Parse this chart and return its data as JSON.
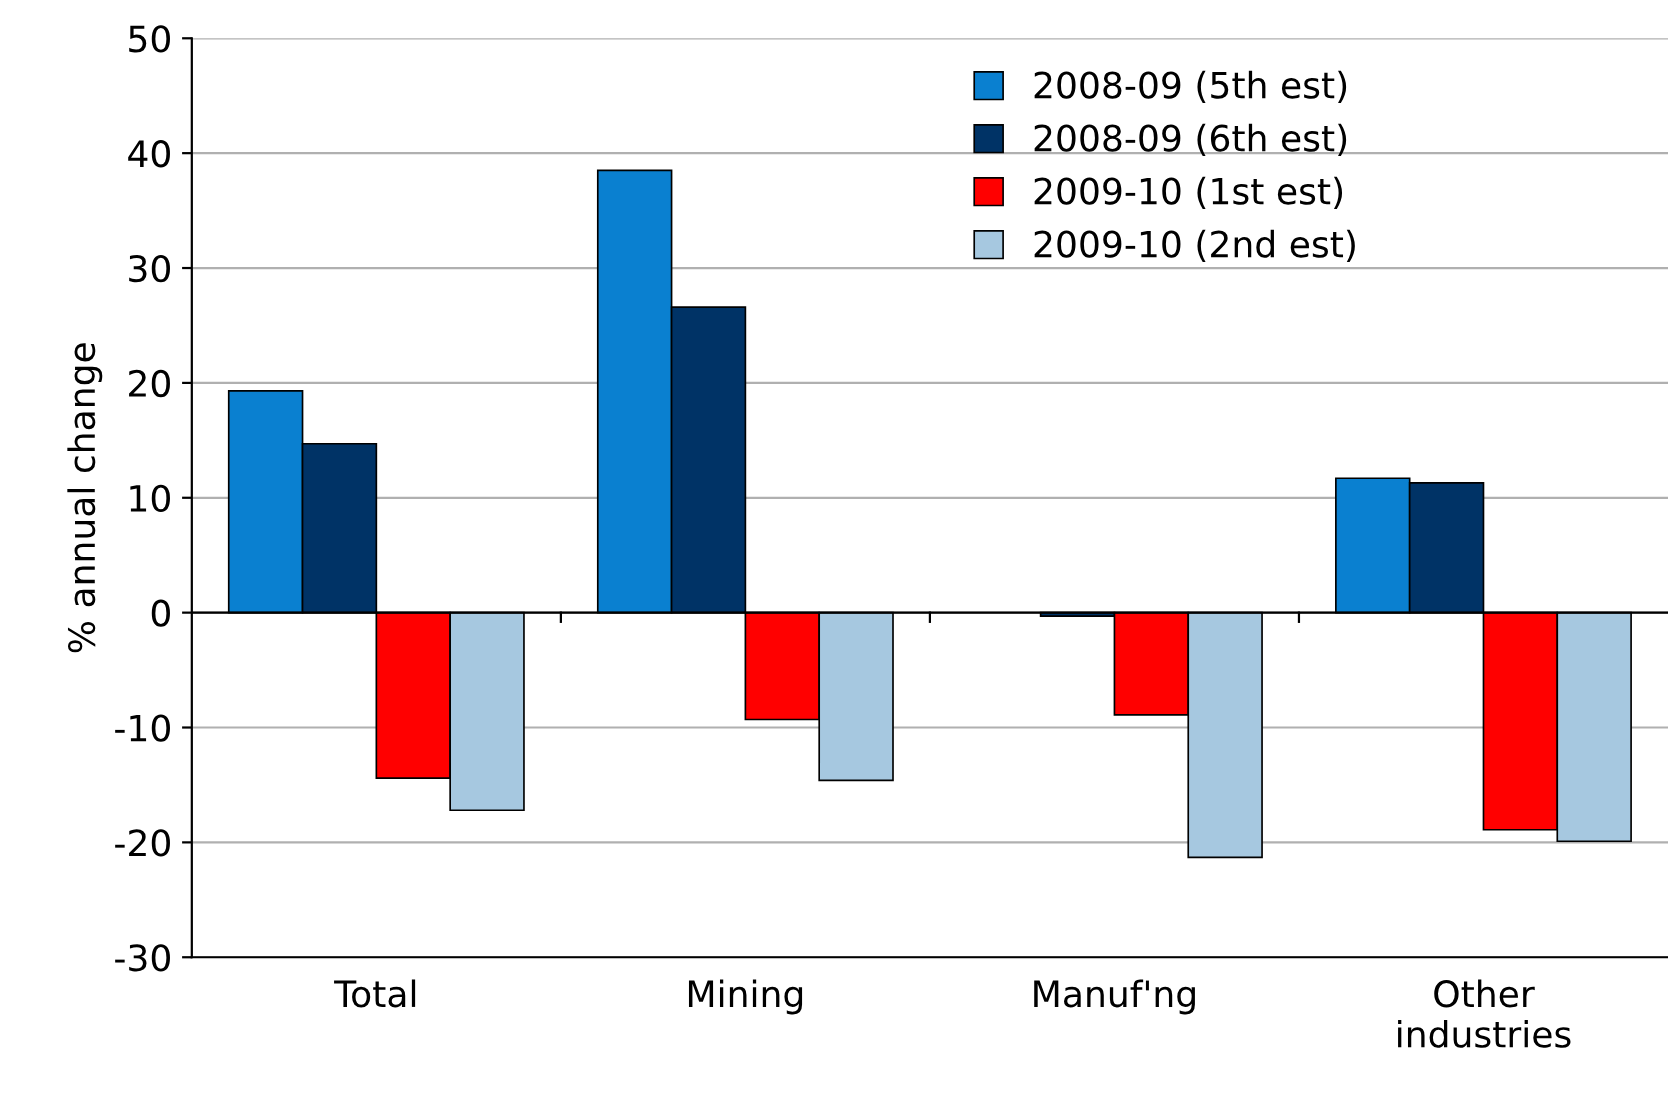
{
  "chart_data": {
    "type": "bar",
    "ylabel": "% annual change",
    "categories": [
      "Total",
      "Mining",
      "Manuf'ng",
      "Other\nindustries"
    ],
    "series": [
      {
        "name": "2008-09 (5th est)",
        "color": "#0a80d0",
        "values": [
          19.3,
          38.5,
          null,
          11.7
        ]
      },
      {
        "name": "2008-09 (6th est)",
        "color": "#003366",
        "values": [
          14.7,
          26.6,
          -0.3,
          11.3
        ]
      },
      {
        "name": "2009-10 (1st est)",
        "color": "#ff0000",
        "values": [
          -14.4,
          -9.3,
          -8.9,
          -18.9
        ]
      },
      {
        "name": "2009-10 (2nd est)",
        "color": "#a6c8e0",
        "values": [
          -17.2,
          -14.6,
          -21.3,
          -19.9
        ]
      }
    ],
    "ylim": [
      -30,
      50
    ],
    "yticks": [
      -30,
      -20,
      -10,
      0,
      10,
      20,
      30,
      40,
      50
    ],
    "grid": "y",
    "legend": "top"
  }
}
